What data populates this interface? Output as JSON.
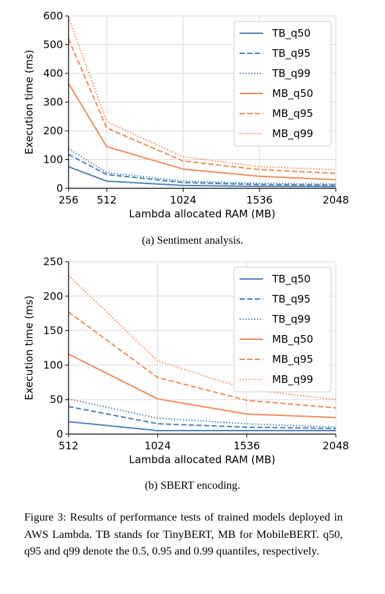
{
  "chart_data": [
    {
      "type": "line",
      "caption": "(a) Sentiment analysis.",
      "xlabel": "Lambda allocated RAM (MB)",
      "ylabel": "Execution time (ms)",
      "xlim": [
        256,
        2048
      ],
      "ylim": [
        0,
        600
      ],
      "xticks": [
        256,
        512,
        1024,
        1536,
        2048
      ],
      "yticks": [
        0,
        100,
        200,
        300,
        400,
        500,
        600
      ],
      "grid": true,
      "legend_position": "top-right",
      "series": [
        {
          "name": "TB_q50",
          "color": "#4c7fb5",
          "dash": "solid",
          "x": [
            256,
            512,
            1024,
            1536,
            2048
          ],
          "y": [
            75,
            25,
            10,
            7,
            6
          ]
        },
        {
          "name": "TB_q95",
          "color": "#4c7fb5",
          "dash": "dashed",
          "x": [
            256,
            512,
            1024,
            1536,
            2048
          ],
          "y": [
            118,
            48,
            20,
            13,
            11
          ]
        },
        {
          "name": "TB_q99",
          "color": "#4c7fb5",
          "dash": "dotted",
          "x": [
            256,
            512,
            1024,
            1536,
            2048
          ],
          "y": [
            138,
            55,
            25,
            17,
            15
          ]
        },
        {
          "name": "MB_q50",
          "color": "#f28a5c",
          "dash": "solid",
          "x": [
            256,
            512,
            1024,
            1536,
            2048
          ],
          "y": [
            365,
            145,
            67,
            42,
            30
          ]
        },
        {
          "name": "MB_q95",
          "color": "#f28a5c",
          "dash": "dashed",
          "x": [
            256,
            512,
            1024,
            1536,
            2048
          ],
          "y": [
            520,
            210,
            95,
            65,
            52
          ]
        },
        {
          "name": "MB_q99",
          "color": "#f28a5c",
          "dash": "dotted",
          "x": [
            256,
            512,
            1024,
            1536,
            2048
          ],
          "y": [
            595,
            232,
            110,
            75,
            65
          ]
        }
      ]
    },
    {
      "type": "line",
      "caption": "(b) SBERT encoding.",
      "xlabel": "Lambda allocated RAM (MB)",
      "ylabel": "Execution time (ms)",
      "xlim": [
        512,
        2048
      ],
      "ylim": [
        0,
        250
      ],
      "xticks": [
        512,
        1024,
        1536,
        2048
      ],
      "yticks": [
        0,
        50,
        100,
        150,
        200,
        250
      ],
      "grid": true,
      "legend_position": "top-right",
      "series": [
        {
          "name": "TB_q50",
          "color": "#4c7fb5",
          "dash": "solid",
          "x": [
            512,
            1024,
            1536,
            2048
          ],
          "y": [
            18,
            5,
            5,
            5
          ]
        },
        {
          "name": "TB_q95",
          "color": "#4c7fb5",
          "dash": "dashed",
          "x": [
            512,
            1024,
            1536,
            2048
          ],
          "y": [
            40,
            15,
            10,
            8
          ]
        },
        {
          "name": "TB_q99",
          "color": "#4c7fb5",
          "dash": "dotted",
          "x": [
            512,
            1024,
            1536,
            2048
          ],
          "y": [
            51,
            23,
            15,
            10
          ]
        },
        {
          "name": "MB_q50",
          "color": "#f28a5c",
          "dash": "solid",
          "x": [
            512,
            1024,
            1536,
            2048
          ],
          "y": [
            116,
            51,
            29,
            24
          ]
        },
        {
          "name": "MB_q95",
          "color": "#f28a5c",
          "dash": "dashed",
          "x": [
            512,
            1024,
            1536,
            2048
          ],
          "y": [
            177,
            82,
            49,
            38
          ]
        },
        {
          "name": "MB_q99",
          "color": "#f28a5c",
          "dash": "dotted",
          "x": [
            512,
            1024,
            1536,
            2048
          ],
          "y": [
            230,
            106,
            65,
            50
          ]
        }
      ]
    }
  ],
  "figure_caption": "Figure 3: Results of performance tests of trained models deployed in AWS Lambda. TB stands for TinyBERT, MB for MobileBERT. q50, q95 and q99 denote the 0.5, 0.95 and 0.99 quantiles, respectively."
}
